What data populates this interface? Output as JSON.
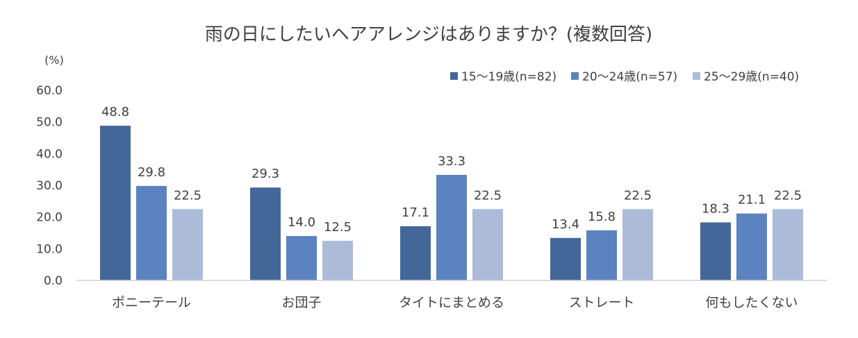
{
  "chart_data": {
    "type": "bar",
    "title": "雨の日にしたいヘアアレンジはありますか？(複数回答)",
    "unit_label": "(%)",
    "ylim": [
      0,
      60
    ],
    "yticks": [
      "0.0",
      "10.0",
      "20.0",
      "30.0",
      "40.0",
      "50.0",
      "60.0"
    ],
    "legend_position": "top-right",
    "grid": false,
    "categories": [
      "ポニーテール",
      "お団子",
      "タイトにまとめる",
      "ストレート",
      "何もしたくない"
    ],
    "series": [
      {
        "name": "15〜19歳(n=82)",
        "color": "#44679a",
        "values": [
          48.8,
          29.3,
          17.1,
          13.4,
          18.3
        ],
        "labels": [
          "48.8",
          "29.3",
          "17.1",
          "13.4",
          "18.3"
        ]
      },
      {
        "name": "20〜24歳(n=57)",
        "color": "#5b83bf",
        "values": [
          29.8,
          14.0,
          33.3,
          15.8,
          21.1
        ],
        "labels": [
          "29.8",
          "14.0",
          "33.3",
          "15.8",
          "21.1"
        ]
      },
      {
        "name": "25〜29歳(n=40)",
        "color": "#abbbd8",
        "values": [
          22.5,
          12.5,
          22.5,
          22.5,
          22.5
        ],
        "labels": [
          "22.5",
          "12.5",
          "22.5",
          "22.5",
          "22.5"
        ]
      }
    ]
  }
}
